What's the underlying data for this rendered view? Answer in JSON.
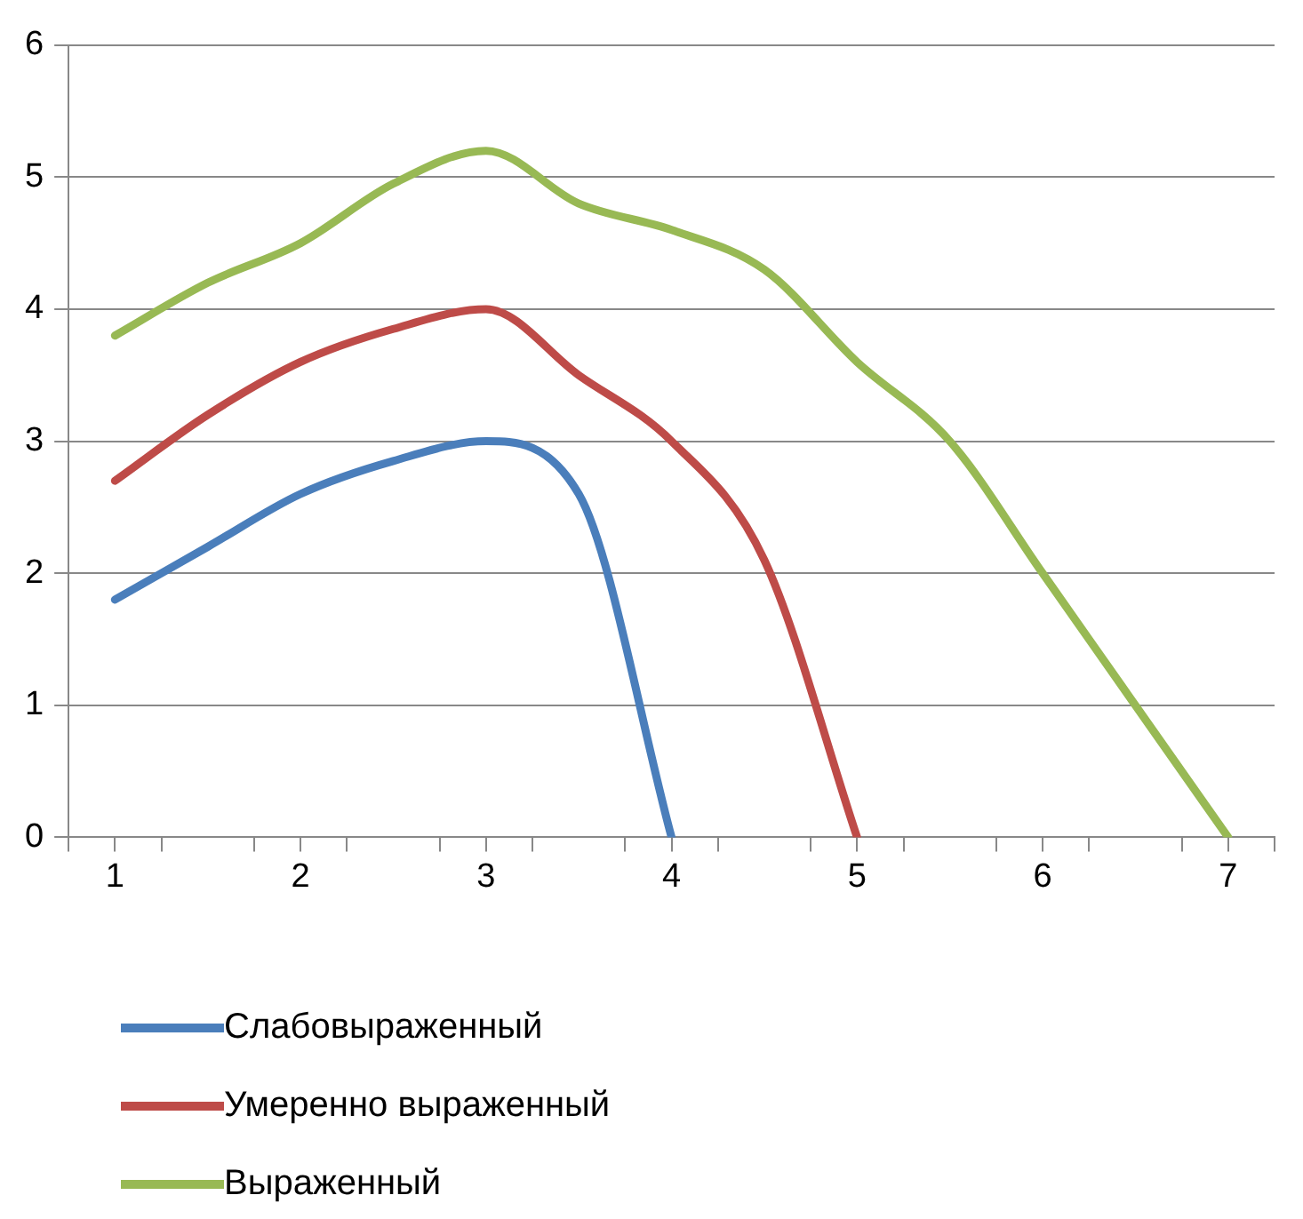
{
  "chart_data": {
    "type": "line",
    "xlim": [
      0.75,
      7.25
    ],
    "xticks": [
      {
        "value": 0.75,
        "label": null
      },
      1,
      {
        "value": 1.25,
        "label": null
      },
      {
        "value": 1.75,
        "label": null
      },
      2,
      {
        "value": 2.25,
        "label": null
      },
      {
        "value": 2.75,
        "label": null
      },
      3,
      {
        "value": 3.25,
        "label": null
      },
      {
        "value": 3.75,
        "label": null
      },
      4,
      {
        "value": 4.25,
        "label": null
      },
      {
        "value": 4.75,
        "label": null
      },
      5,
      {
        "value": 5.25,
        "label": null
      },
      {
        "value": 5.75,
        "label": null
      },
      6,
      {
        "value": 6.25,
        "label": null
      },
      {
        "value": 6.75,
        "label": null
      },
      7,
      {
        "value": 7.25,
        "label": null
      }
    ],
    "ylim": [
      0,
      6
    ],
    "yticks": [
      0,
      1,
      2,
      3,
      4,
      5,
      6
    ],
    "grid": "y",
    "legend": "bottom",
    "marker": "none",
    "line_style": "solid",
    "series": [
      {
        "name": "Слабовыраженный",
        "color": "#4a7ebb",
        "x": [
          1,
          1.5,
          2,
          2.5,
          3,
          3.5,
          4
        ],
        "values": [
          1.8,
          2.2,
          2.6,
          2.85,
          3.0,
          2.6,
          0
        ]
      },
      {
        "name": "Умеренно выраженный",
        "color": "#be4b48",
        "x": [
          1,
          1.5,
          2,
          2.5,
          3,
          3.5,
          4,
          4.5,
          5
        ],
        "values": [
          2.7,
          3.2,
          3.6,
          3.85,
          4.0,
          3.5,
          3.0,
          2.1,
          0
        ]
      },
      {
        "name": "Выраженный",
        "color": "#98b954",
        "x": [
          1,
          1.5,
          2,
          2.5,
          3,
          3.5,
          4,
          4.5,
          5,
          5.5,
          6,
          6.5,
          7
        ],
        "values": [
          3.8,
          4.2,
          4.5,
          4.95,
          5.2,
          4.8,
          4.6,
          4.3,
          3.6,
          3.0,
          2.0,
          1.0,
          0
        ]
      }
    ]
  }
}
